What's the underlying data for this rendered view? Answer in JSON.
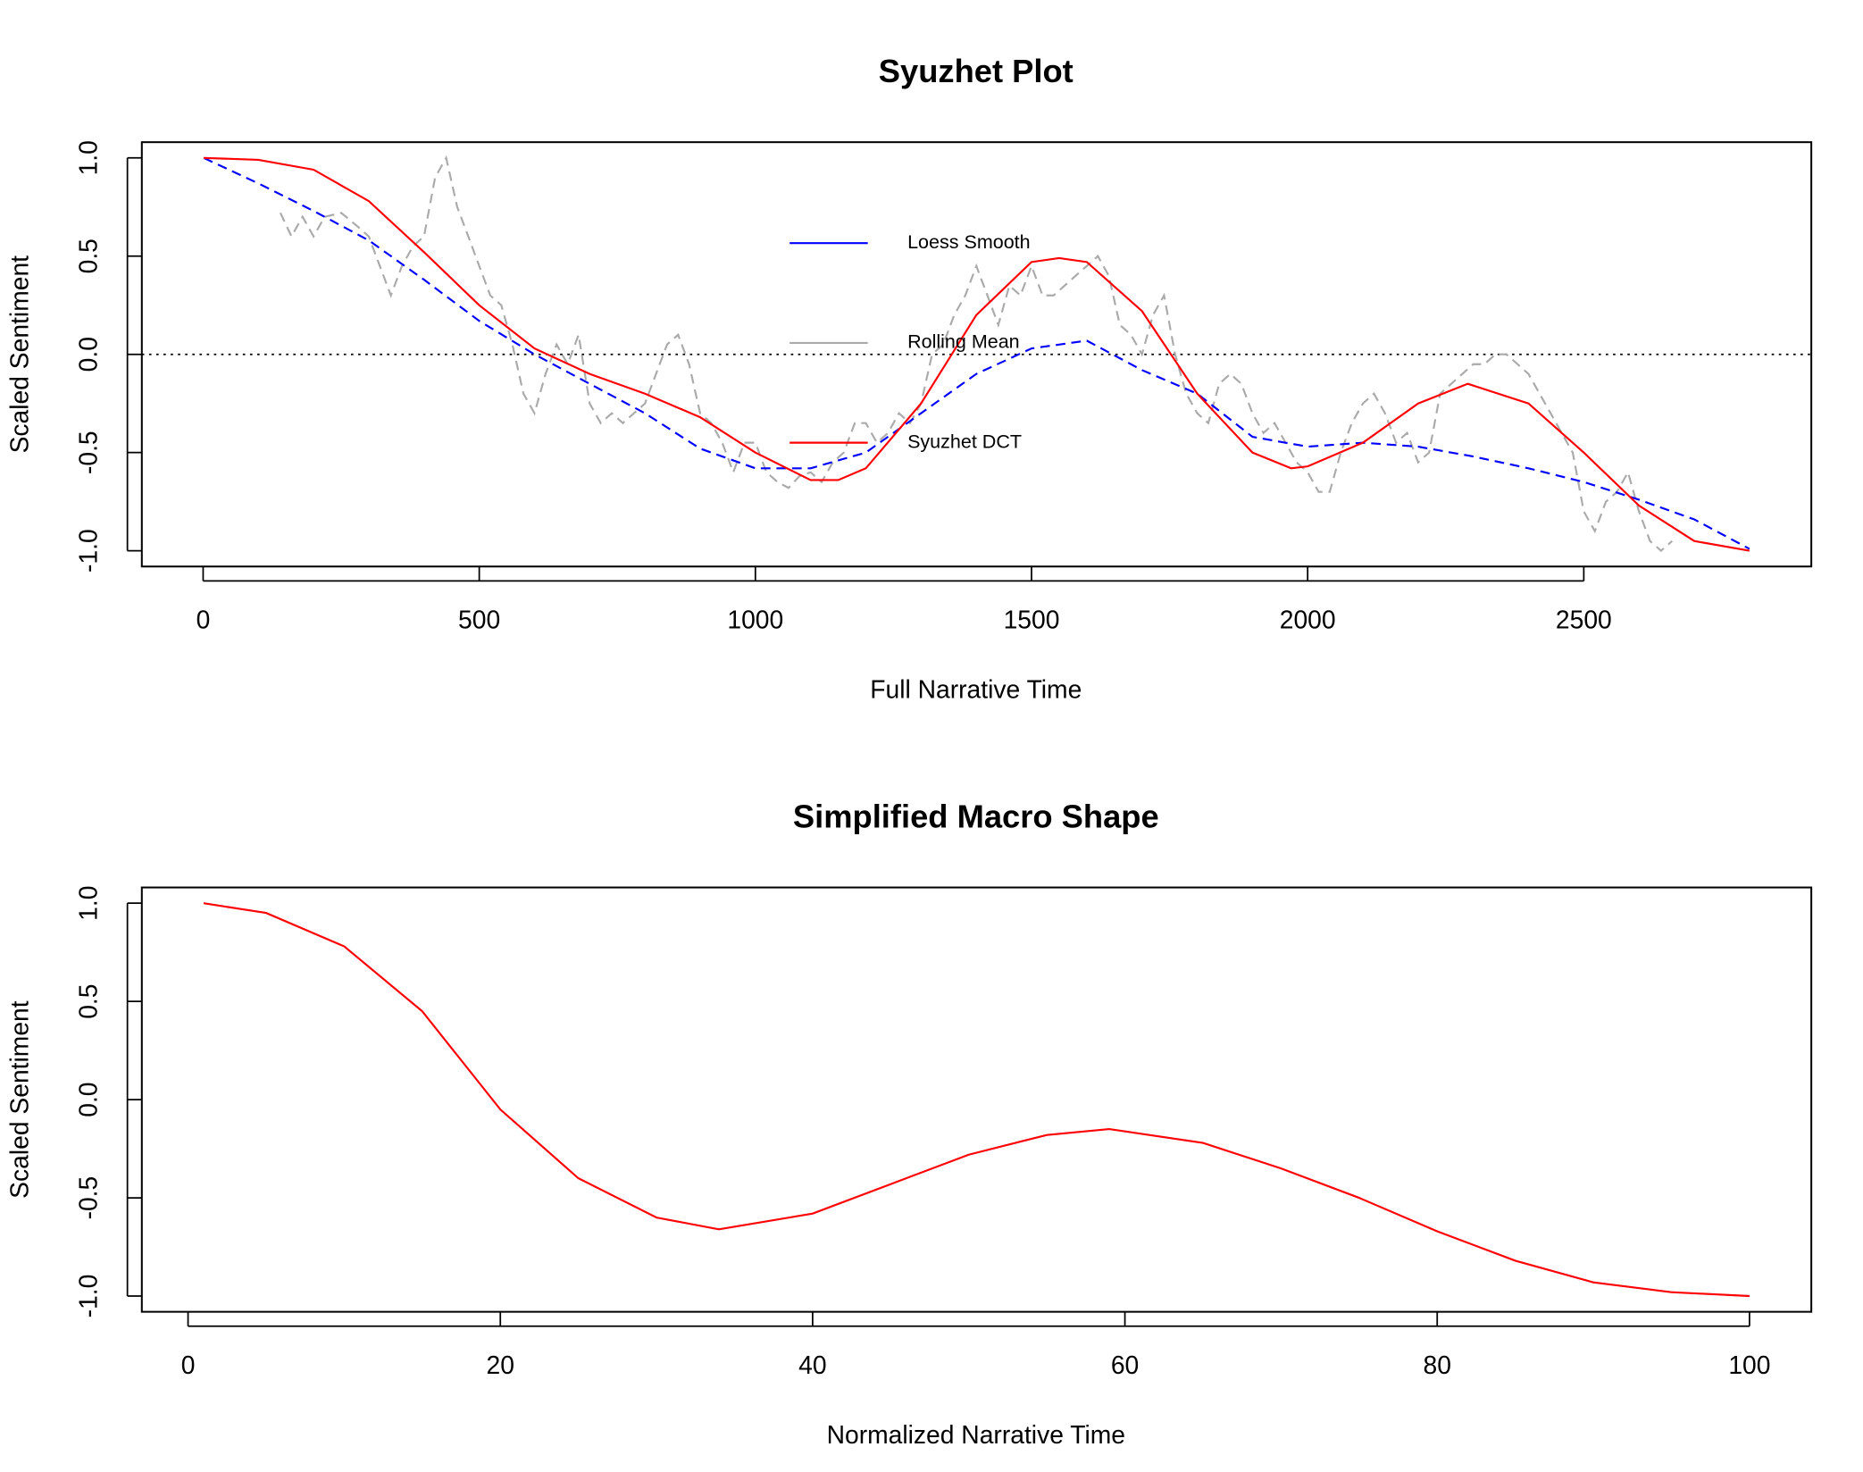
{
  "chart_data": [
    {
      "type": "line",
      "title": "Syuzhet Plot",
      "x_label": "Full Narrative Time",
      "y_label": "Scaled Sentiment",
      "xlim": [
        -111,
        2912
      ],
      "xticks": [
        0,
        500,
        1000,
        1500,
        2000,
        2500
      ],
      "ylim": [
        -1.08,
        1.08
      ],
      "yticks": [
        {
          "value": -1,
          "label": "-1.0"
        },
        {
          "value": -0.5,
          "label": "-0.5"
        },
        {
          "value": 0,
          "label": "0.0"
        },
        {
          "value": 0.5,
          "label": "0.5"
        },
        {
          "value": 1,
          "label": "1.0"
        }
      ],
      "hline": 0,
      "legend": "center",
      "series": [
        {
          "name": "Loess Smooth",
          "color": "#0000ff",
          "line_style": "dashed",
          "x": [
            1,
            100,
            200,
            300,
            400,
            500,
            600,
            700,
            800,
            900,
            1000,
            1100,
            1200,
            1300,
            1400,
            1500,
            1600,
            1700,
            1800,
            1900,
            2000,
            2100,
            2200,
            2300,
            2400,
            2500,
            2600,
            2700,
            2800
          ],
          "values": [
            1.0,
            0.87,
            0.73,
            0.58,
            0.38,
            0.17,
            0.0,
            -0.15,
            -0.3,
            -0.48,
            -0.58,
            -0.58,
            -0.5,
            -0.3,
            -0.1,
            0.03,
            0.07,
            -0.08,
            -0.2,
            -0.42,
            -0.47,
            -0.45,
            -0.47,
            -0.52,
            -0.58,
            -0.65,
            -0.74,
            -0.84,
            -0.99
          ]
        },
        {
          "name": "Rolling Mean",
          "color": "#aaaaaa",
          "line_style": "dashed",
          "x": [
            140,
            160,
            180,
            200,
            220,
            250,
            280,
            300,
            320,
            340,
            360,
            380,
            400,
            420,
            440,
            460,
            480,
            500,
            520,
            540,
            560,
            580,
            600,
            620,
            640,
            660,
            680,
            700,
            720,
            740,
            760,
            780,
            800,
            820,
            840,
            860,
            880,
            900,
            920,
            940,
            960,
            980,
            1000,
            1020,
            1040,
            1060,
            1080,
            1100,
            1120,
            1140,
            1160,
            1180,
            1200,
            1220,
            1240,
            1260,
            1280,
            1300,
            1320,
            1340,
            1360,
            1380,
            1400,
            1420,
            1440,
            1460,
            1480,
            1500,
            1520,
            1540,
            1560,
            1580,
            1600,
            1620,
            1640,
            1660,
            1680,
            1700,
            1720,
            1740,
            1760,
            1780,
            1800,
            1820,
            1840,
            1860,
            1880,
            1900,
            1920,
            1940,
            1960,
            1980,
            2000,
            2020,
            2040,
            2060,
            2080,
            2100,
            2120,
            2140,
            2160,
            2180,
            2200,
            2220,
            2240,
            2260,
            2280,
            2300,
            2320,
            2340,
            2360,
            2380,
            2400,
            2420,
            2440,
            2460,
            2480,
            2500,
            2520,
            2540,
            2560,
            2580,
            2600,
            2620,
            2640,
            2660
          ],
          "values": [
            0.72,
            0.6,
            0.7,
            0.6,
            0.7,
            0.72,
            0.65,
            0.6,
            0.45,
            0.3,
            0.45,
            0.55,
            0.6,
            0.9,
            1.0,
            0.75,
            0.6,
            0.45,
            0.3,
            0.25,
            0.05,
            -0.2,
            -0.3,
            -0.1,
            0.05,
            -0.05,
            0.1,
            -0.25,
            -0.35,
            -0.3,
            -0.35,
            -0.3,
            -0.25,
            -0.1,
            0.05,
            0.1,
            -0.05,
            -0.3,
            -0.35,
            -0.45,
            -0.6,
            -0.45,
            -0.45,
            -0.6,
            -0.65,
            -0.68,
            -0.62,
            -0.6,
            -0.65,
            -0.55,
            -0.5,
            -0.35,
            -0.35,
            -0.45,
            -0.4,
            -0.3,
            -0.35,
            -0.25,
            0.0,
            0.05,
            0.2,
            0.3,
            0.45,
            0.3,
            0.15,
            0.35,
            0.3,
            0.45,
            0.3,
            0.3,
            0.35,
            0.4,
            0.45,
            0.5,
            0.4,
            0.15,
            0.1,
            0.0,
            0.2,
            0.3,
            0.0,
            -0.2,
            -0.3,
            -0.35,
            -0.15,
            -0.1,
            -0.15,
            -0.3,
            -0.4,
            -0.35,
            -0.45,
            -0.55,
            -0.6,
            -0.7,
            -0.7,
            -0.5,
            -0.35,
            -0.25,
            -0.2,
            -0.3,
            -0.45,
            -0.4,
            -0.55,
            -0.5,
            -0.2,
            -0.15,
            -0.1,
            -0.05,
            -0.05,
            0.0,
            0.0,
            -0.05,
            -0.1,
            -0.2,
            -0.3,
            -0.4,
            -0.5,
            -0.8,
            -0.9,
            -0.75,
            -0.7,
            -0.6,
            -0.8,
            -0.95,
            -1.0,
            -0.95
          ]
        },
        {
          "name": "Syuzhet DCT",
          "color": "#ff0000",
          "line_style": "solid",
          "x": [
            1,
            100,
            200,
            300,
            400,
            500,
            600,
            700,
            800,
            900,
            1000,
            1100,
            1150,
            1200,
            1300,
            1400,
            1500,
            1550,
            1600,
            1700,
            1800,
            1900,
            1970,
            2000,
            2100,
            2200,
            2290,
            2400,
            2500,
            2600,
            2700,
            2800
          ],
          "values": [
            1.0,
            0.99,
            0.94,
            0.78,
            0.52,
            0.25,
            0.03,
            -0.1,
            -0.2,
            -0.32,
            -0.5,
            -0.64,
            -0.64,
            -0.58,
            -0.25,
            0.2,
            0.47,
            0.49,
            0.47,
            0.22,
            -0.2,
            -0.5,
            -0.58,
            -0.57,
            -0.45,
            -0.25,
            -0.15,
            -0.25,
            -0.5,
            -0.77,
            -0.95,
            -1.0
          ]
        }
      ]
    },
    {
      "type": "line",
      "title": "Simplified Macro Shape",
      "x_label": "Normalized Narrative Time",
      "y_label": "Scaled Sentiment",
      "xlim": [
        -2.96,
        103.96
      ],
      "xticks": [
        0,
        20,
        40,
        60,
        80,
        100
      ],
      "ylim": [
        -1.08,
        1.08
      ],
      "yticks": [
        {
          "value": -1,
          "label": "-1.0"
        },
        {
          "value": -0.5,
          "label": "-0.5"
        },
        {
          "value": 0,
          "label": "0.0"
        },
        {
          "value": 0.5,
          "label": "0.5"
        },
        {
          "value": 1,
          "label": "1.0"
        }
      ],
      "series": [
        {
          "color": "#ff0000",
          "line_style": "solid",
          "x": [
            1,
            5,
            10,
            15,
            20,
            25,
            30,
            34,
            40,
            45,
            50,
            55,
            59,
            65,
            70,
            75,
            80,
            85,
            90,
            95,
            100
          ],
          "values": [
            1.0,
            0.95,
            0.78,
            0.45,
            -0.05,
            -0.4,
            -0.6,
            -0.66,
            -0.58,
            -0.43,
            -0.28,
            -0.18,
            -0.15,
            -0.22,
            -0.35,
            -0.5,
            -0.67,
            -0.82,
            -0.93,
            -0.98,
            -1.0
          ]
        }
      ]
    }
  ]
}
